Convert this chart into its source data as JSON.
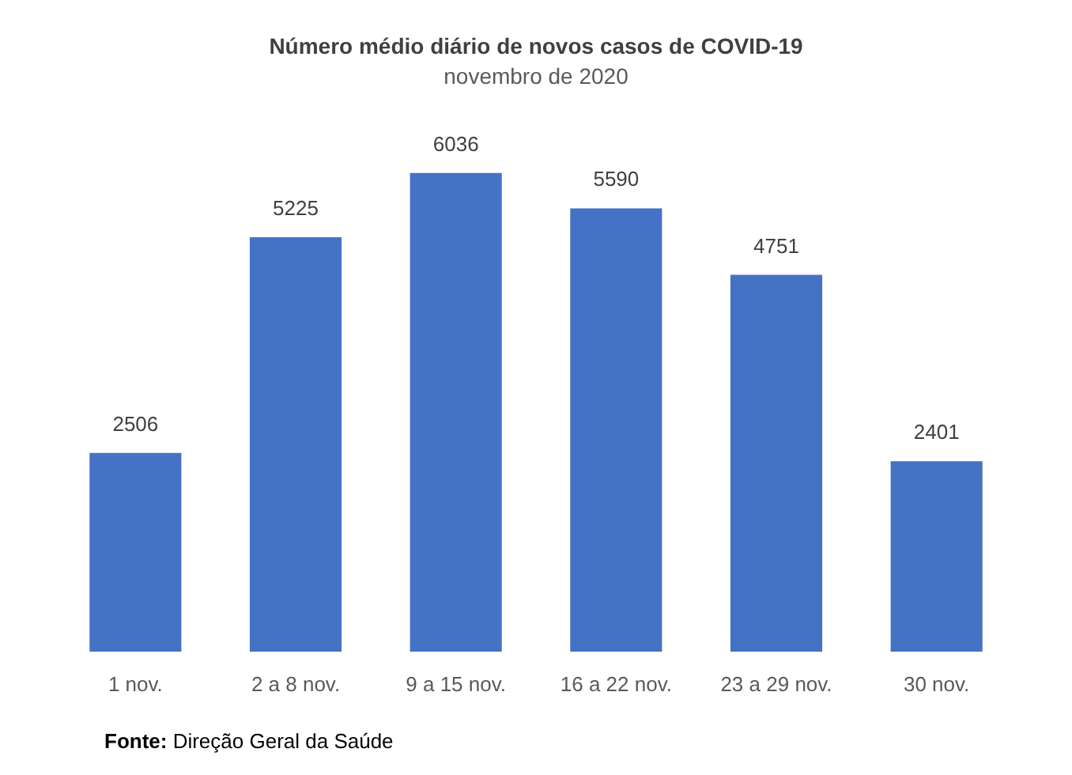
{
  "chart_data": {
    "type": "bar",
    "title": "Número médio diário de novos casos de COVID-19",
    "subtitle": "novembro de 2020",
    "categories": [
      "1 nov.",
      "2 a 8 nov.",
      "9 a 15 nov.",
      "16 a 22 nov.",
      "23 a 29 nov.",
      "30 nov."
    ],
    "values": [
      2506,
      5225,
      6036,
      5590,
      4751,
      2401
    ],
    "color": "#4472c4",
    "data_labels": true,
    "annotations": [
      "Fonte: Direção Geral da Saúde"
    ]
  }
}
